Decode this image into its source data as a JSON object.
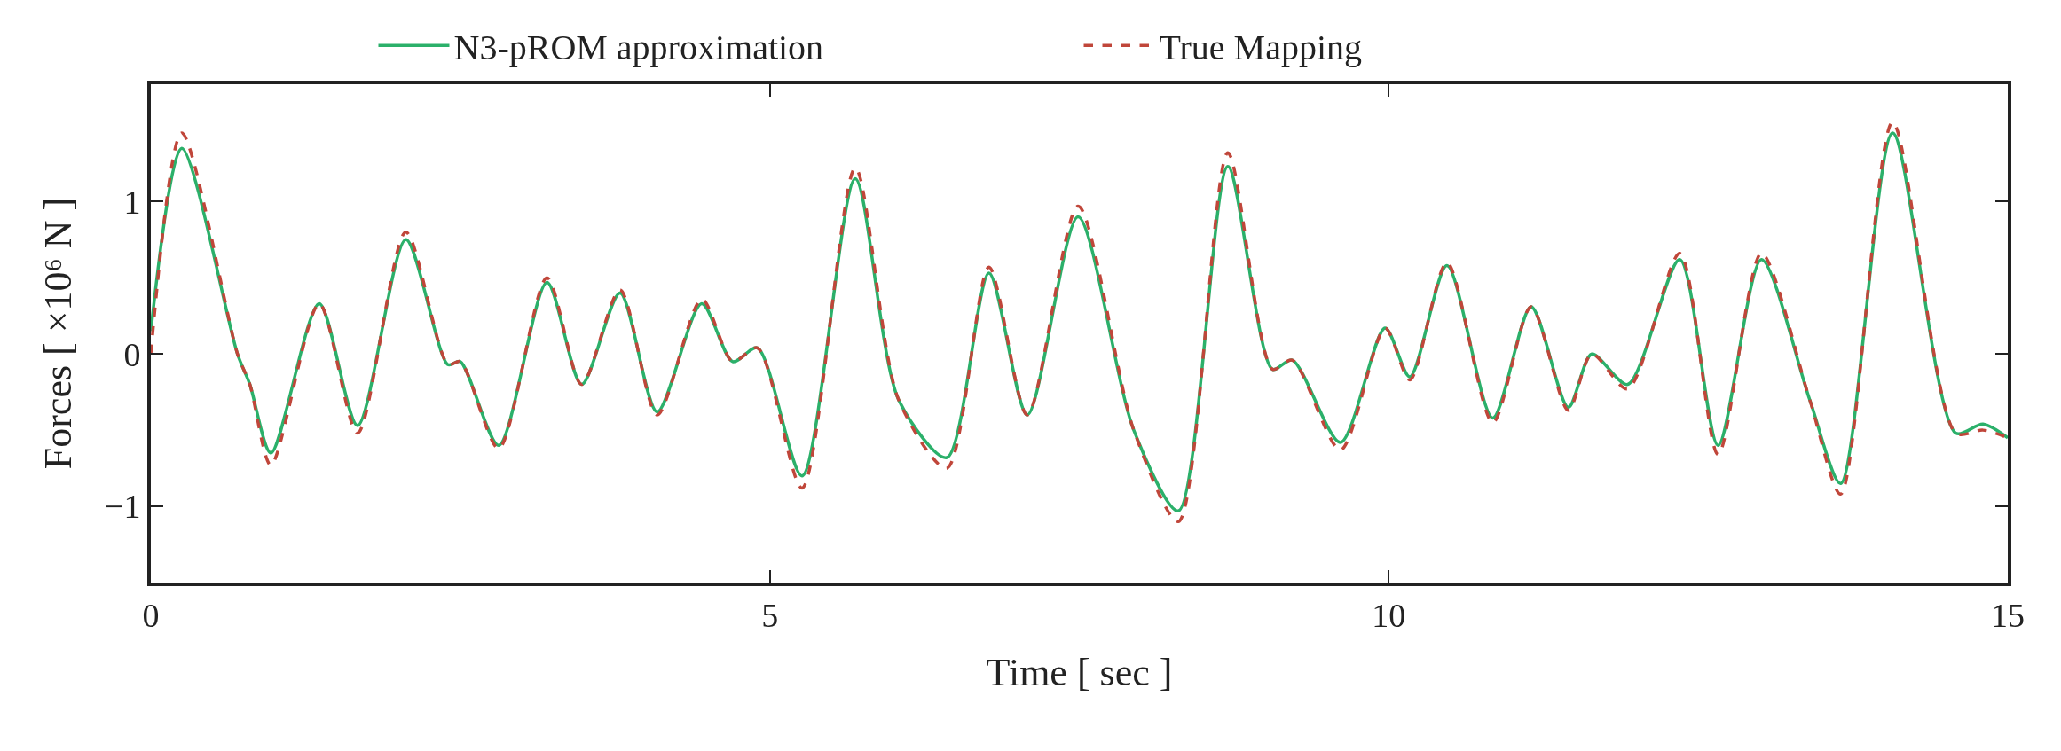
{
  "chart_data": {
    "type": "line",
    "xlabel": "Time [ sec ]",
    "ylabel": "Forces [ ×10⁶ N ]",
    "xlim": [
      0,
      15
    ],
    "ylim": [
      -1.5,
      1.77
    ],
    "xticks": [
      0,
      5,
      10,
      15
    ],
    "yticks": [
      -1,
      0,
      1
    ],
    "legend": "top",
    "marker": "none",
    "series": [
      {
        "name": "N3-pROM approximation",
        "color": "#2bb06a",
        "line_style": "solid",
        "x": [
          0,
          0.25,
          0.7,
          0.8,
          0.97,
          1.36,
          1.67,
          2.06,
          2.4,
          2.5,
          2.81,
          3.2,
          3.48,
          3.79,
          4.09,
          4.45,
          4.7,
          4.9,
          5.26,
          5.69,
          6.04,
          6.43,
          6.77,
          7.08,
          7.49,
          7.94,
          8.3,
          8.7,
          9.06,
          9.22,
          9.61,
          9.97,
          10.17,
          10.47,
          10.84,
          11.15,
          11.45,
          11.64,
          11.93,
          12.35,
          12.66,
          13.01,
          13.4,
          13.65,
          14.07,
          14.58,
          14.8,
          15
        ],
        "values": [
          0.15,
          1.35,
          0,
          -0.2,
          -0.65,
          0.33,
          -0.47,
          0.75,
          -0.07,
          -0.05,
          -0.6,
          0.47,
          -0.2,
          0.4,
          -0.38,
          0.33,
          -0.05,
          0.04,
          -0.8,
          1.15,
          -0.3,
          -0.68,
          0.53,
          -0.4,
          0.9,
          -0.5,
          -1.03,
          1.23,
          -0.1,
          -0.04,
          -0.58,
          0.17,
          -0.15,
          0.58,
          -0.42,
          0.31,
          -0.35,
          0,
          -0.2,
          0.62,
          -0.6,
          0.62,
          -0.3,
          -0.85,
          1.45,
          -0.52,
          -0.46,
          -0.55
        ]
      },
      {
        "name": "True Mapping",
        "color": "#c0463a",
        "line_style": "dashed",
        "x": [
          0,
          0.25,
          0.7,
          0.8,
          0.97,
          1.36,
          1.67,
          2.06,
          2.4,
          2.5,
          2.81,
          3.2,
          3.48,
          3.79,
          4.09,
          4.45,
          4.7,
          4.9,
          5.26,
          5.69,
          6.04,
          6.43,
          6.77,
          7.08,
          7.49,
          7.94,
          8.3,
          8.7,
          9.06,
          9.22,
          9.61,
          9.97,
          10.17,
          10.47,
          10.84,
          11.15,
          11.45,
          11.64,
          11.93,
          12.35,
          12.66,
          13.01,
          13.4,
          13.65,
          14.07,
          14.58,
          14.8,
          15
        ],
        "values": [
          0,
          1.45,
          0,
          -0.2,
          -0.73,
          0.33,
          -0.52,
          0.8,
          -0.07,
          -0.05,
          -0.62,
          0.5,
          -0.2,
          0.42,
          -0.4,
          0.36,
          -0.05,
          0.04,
          -0.88,
          1.22,
          -0.3,
          -0.75,
          0.57,
          -0.4,
          0.97,
          -0.5,
          -1.1,
          1.32,
          -0.1,
          -0.04,
          -0.63,
          0.17,
          -0.17,
          0.6,
          -0.45,
          0.31,
          -0.37,
          0,
          -0.23,
          0.66,
          -0.66,
          0.66,
          -0.3,
          -0.92,
          1.52,
          -0.52,
          -0.5,
          -0.55
        ]
      }
    ]
  }
}
